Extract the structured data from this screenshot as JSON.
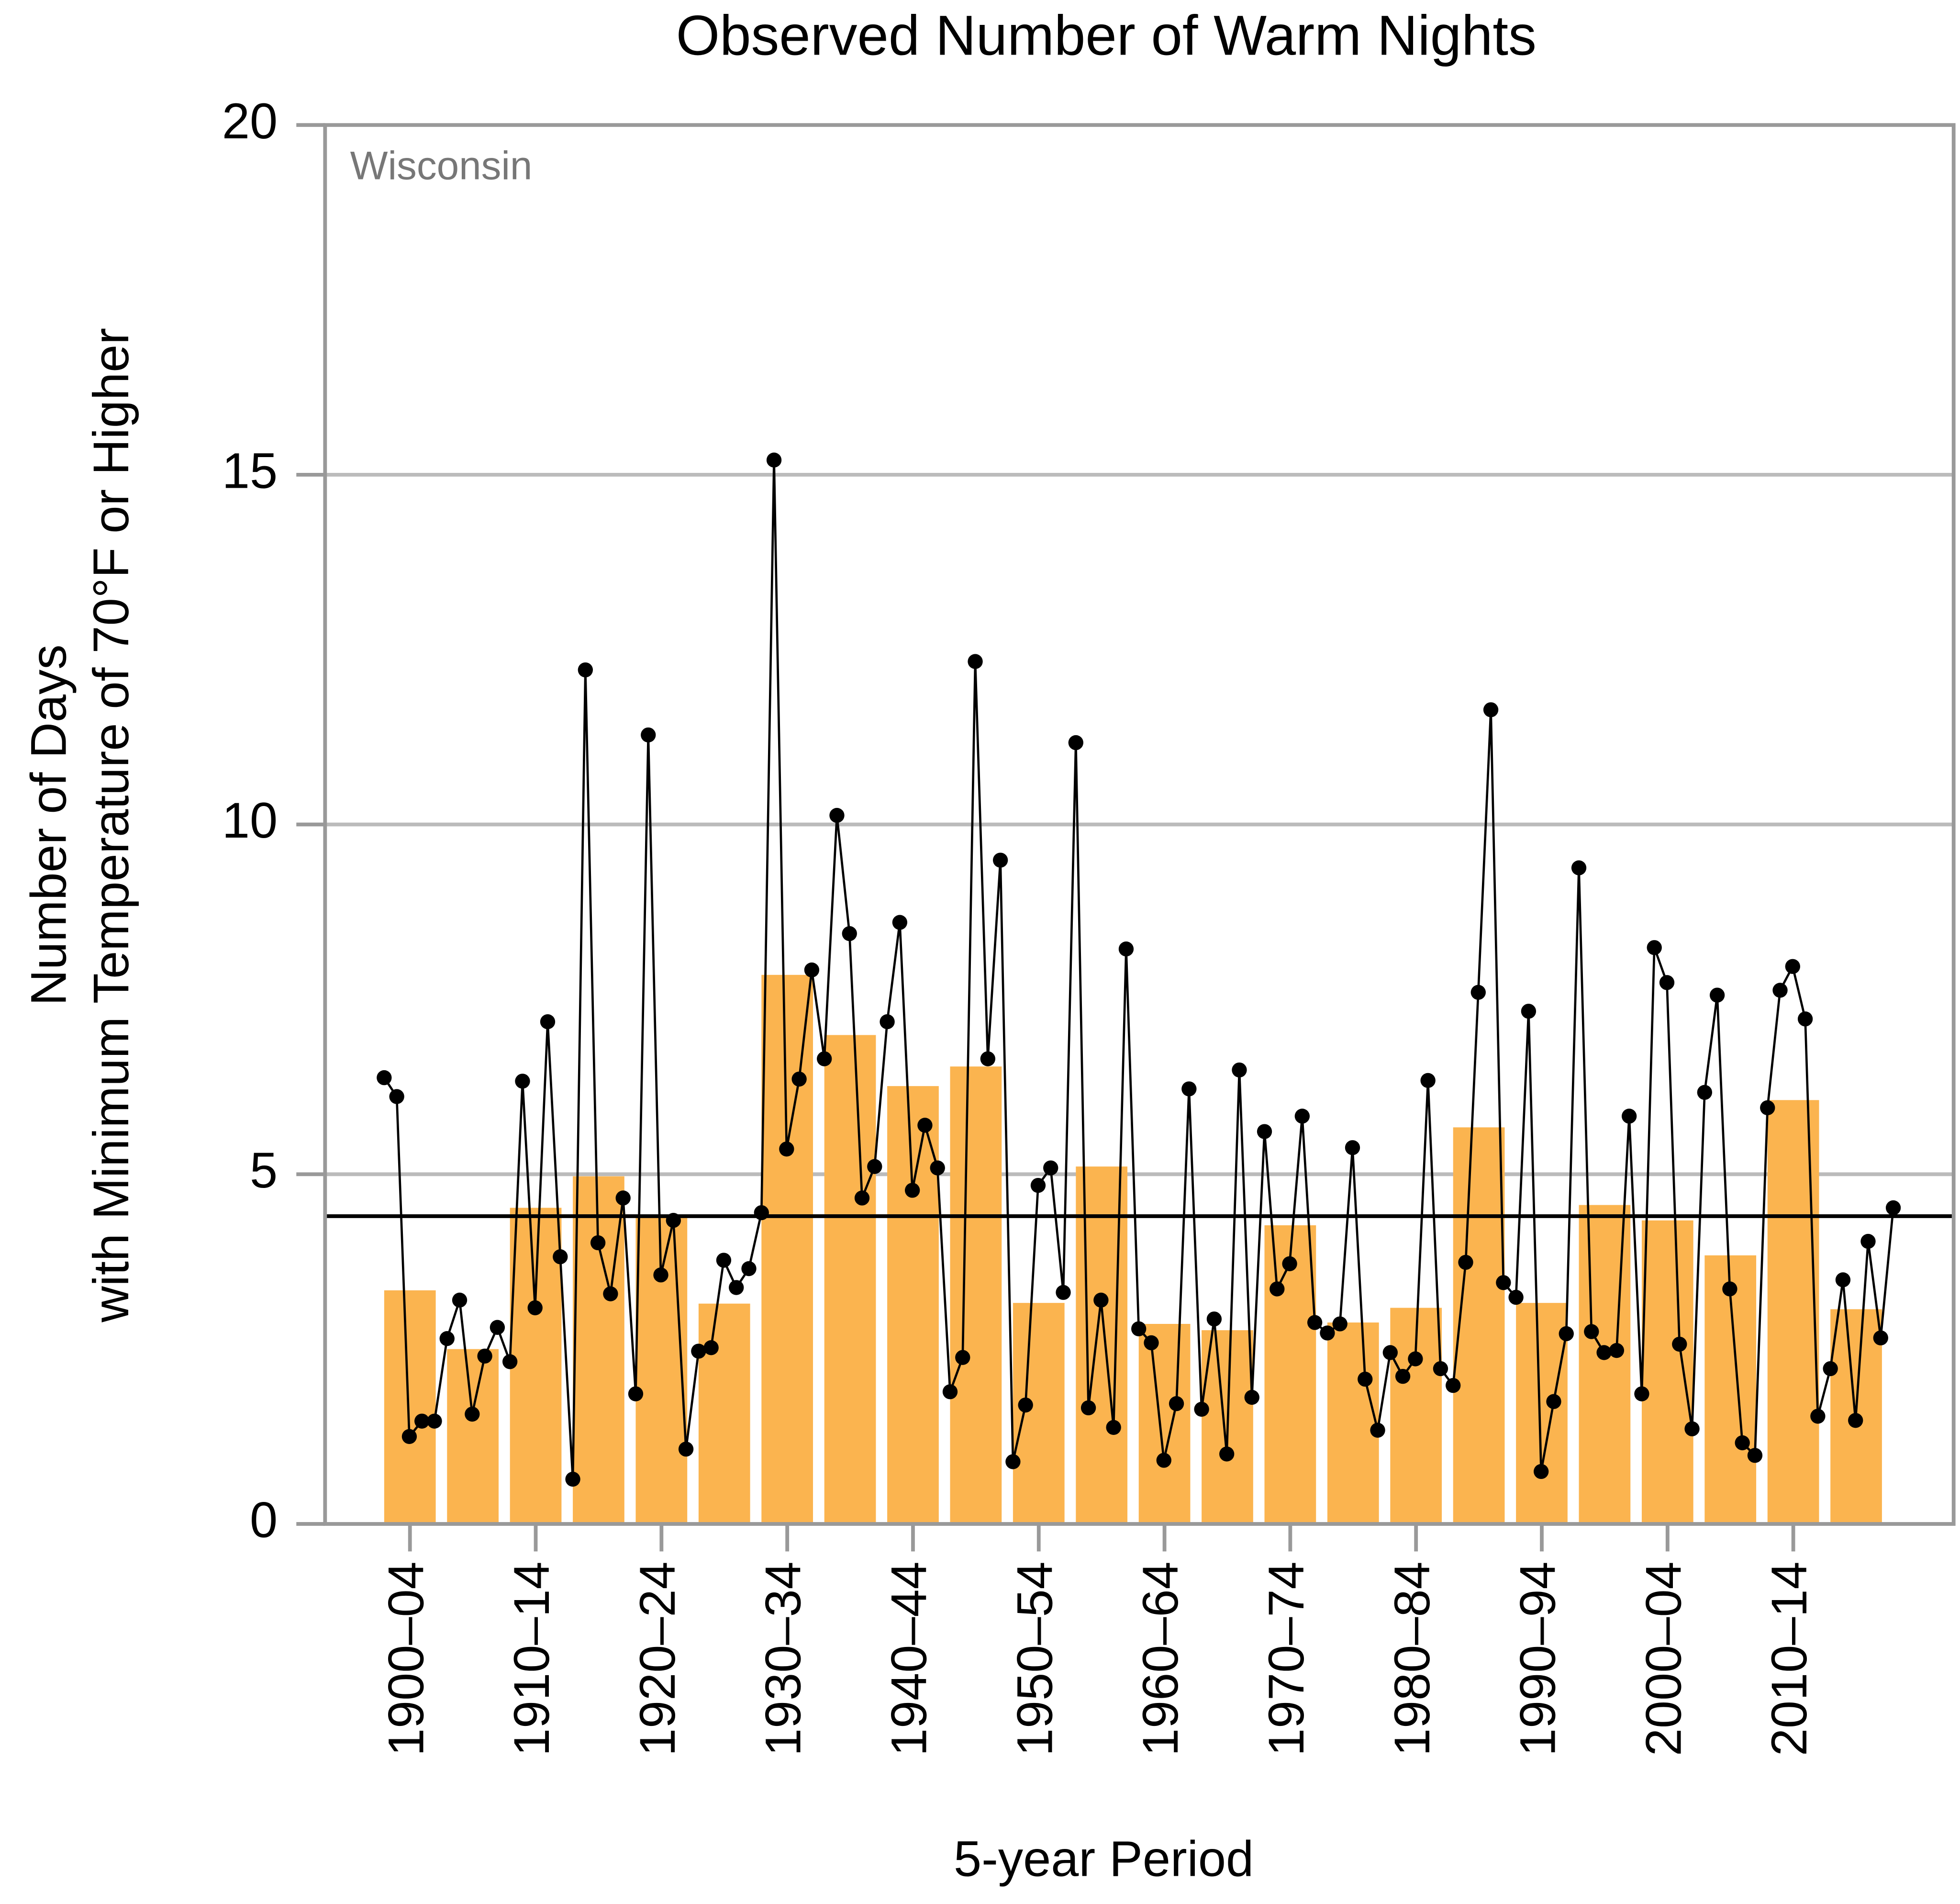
{
  "chart_data": {
    "type": "bar",
    "title": "Observed Number of Warm Nights",
    "annotation": "Wisconsin",
    "xlabel": "5-year Period",
    "ylabel": [
      "Number of Days",
      "with Minimum Temperature of 70°F or Higher"
    ],
    "categories": [
      "1900–04",
      null,
      "1910–14",
      null,
      "1920–24",
      null,
      "1930–34",
      null,
      "1940–44",
      null,
      "1950–54",
      null,
      "1960–64",
      null,
      "1970–74",
      null,
      "1980–84",
      null,
      "1990–94",
      null,
      "2000–04",
      null,
      "2010–14",
      null
    ],
    "values": [
      3.34,
      2.5,
      4.52,
      4.97,
      4.41,
      3.15,
      7.85,
      6.99,
      6.26,
      6.54,
      3.16,
      5.11,
      2.86,
      2.77,
      4.27,
      2.88,
      3.09,
      5.67,
      3.16,
      4.56,
      4.34,
      3.84,
      6.06,
      3.07
    ],
    "color": "#fbb44f",
    "line": {
      "type": "line",
      "color": "#000000",
      "x": [
        1900,
        1901,
        1902,
        1903,
        1904,
        1905,
        1906,
        1907,
        1908,
        1909,
        1910,
        1911,
        1912,
        1913,
        1914,
        1915,
        1916,
        1917,
        1918,
        1919,
        1920,
        1921,
        1922,
        1923,
        1924,
        1925,
        1926,
        1927,
        1928,
        1929,
        1930,
        1931,
        1932,
        1933,
        1934,
        1935,
        1936,
        1937,
        1938,
        1939,
        1940,
        1941,
        1942,
        1943,
        1944,
        1945,
        1946,
        1947,
        1948,
        1949,
        1950,
        1951,
        1952,
        1953,
        1954,
        1955,
        1956,
        1957,
        1958,
        1959,
        1960,
        1961,
        1962,
        1963,
        1964,
        1965,
        1966,
        1967,
        1968,
        1969,
        1970,
        1971,
        1972,
        1973,
        1974,
        1975,
        1976,
        1977,
        1978,
        1979,
        1980,
        1981,
        1982,
        1983,
        1984,
        1985,
        1986,
        1987,
        1988,
        1989,
        1990,
        1991,
        1992,
        1993,
        1994,
        1995,
        1996,
        1997,
        1998,
        1999,
        2000,
        2001,
        2002,
        2003,
        2004,
        2005,
        2006,
        2007,
        2008,
        2009,
        2010,
        2011,
        2012,
        2013,
        2014,
        2015,
        2016,
        2017,
        2018,
        2019,
        2020
      ],
      "values": [
        6.38,
        6.11,
        1.25,
        1.47,
        1.47,
        2.65,
        3.2,
        1.57,
        2.4,
        2.81,
        2.32,
        6.33,
        3.09,
        7.18,
        3.82,
        0.64,
        12.21,
        4.02,
        3.29,
        4.66,
        1.86,
        11.28,
        3.56,
        4.34,
        1.07,
        2.47,
        2.52,
        3.77,
        3.38,
        3.65,
        4.45,
        15.21,
        5.36,
        6.36,
        7.92,
        6.65,
        10.13,
        8.44,
        4.66,
        5.11,
        7.18,
        8.6,
        4.77,
        5.7,
        5.09,
        1.89,
        2.38,
        12.33,
        6.65,
        9.49,
        0.89,
        1.7,
        4.84,
        5.09,
        3.31,
        11.17,
        1.66,
        3.2,
        1.38,
        8.22,
        2.79,
        2.59,
        0.91,
        1.72,
        6.22,
        1.64,
        2.93,
        1.0,
        6.49,
        1.81,
        5.61,
        3.36,
        3.72,
        5.83,
        2.88,
        2.73,
        2.86,
        5.38,
        2.07,
        1.34,
        2.45,
        2.11,
        2.36,
        6.34,
        2.22,
        1.98,
        3.74,
        7.6,
        11.64,
        3.45,
        3.24,
        7.33,
        0.75,
        1.75,
        2.72,
        9.38,
        2.75,
        2.45,
        2.48,
        5.83,
        1.86,
        8.24,
        7.74,
        2.57,
        1.36,
        6.17,
        7.56,
        3.36,
        1.16,
        0.98,
        5.95,
        7.63,
        7.97,
        7.22,
        1.54,
        2.22,
        3.49,
        1.48,
        4.04,
        2.66,
        4.52
      ]
    },
    "average": 4.4,
    "xlim": [
      1895.3,
      2024.8
    ],
    "ylim": [
      0,
      20
    ],
    "yticks": [
      0,
      5,
      10,
      15,
      20
    ],
    "grid": true
  }
}
